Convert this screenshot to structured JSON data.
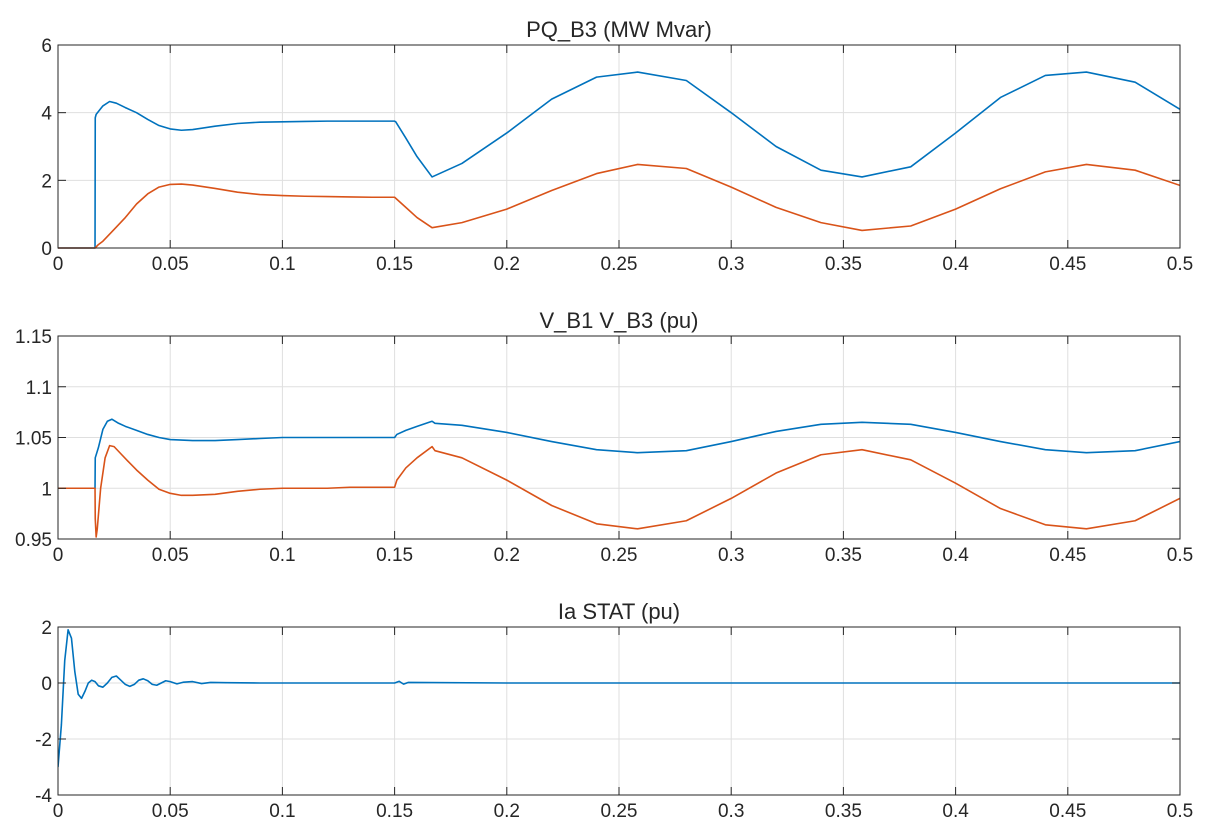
{
  "colors": {
    "series1": "#0072BD",
    "series2": "#D95319",
    "grid": "#DFDFDF",
    "axis": "#262626",
    "text": "#262626",
    "background": "#FFFFFF"
  },
  "chart_data": [
    {
      "type": "line",
      "title": "PQ_B3 (MW Mvar)",
      "xlabel": "",
      "ylabel": "",
      "xlim": [
        0,
        0.5
      ],
      "ylim": [
        0,
        6
      ],
      "xticks": [
        0,
        0.05,
        0.1,
        0.15,
        0.2,
        0.25,
        0.3,
        0.35,
        0.4,
        0.45,
        0.5
      ],
      "xtick_labels": [
        "0",
        "0.05",
        "0.1",
        "0.15",
        "0.2",
        "0.25",
        "0.3",
        "0.35",
        "0.4",
        "0.45",
        "0.5"
      ],
      "yticks": [
        0,
        2,
        4,
        6
      ],
      "ytick_labels": [
        "0",
        "2",
        "4",
        "6"
      ],
      "grid": true,
      "series": [
        {
          "color": "#0072BD",
          "x": [
            0,
            0.0165,
            0.0166,
            0.017,
            0.02,
            0.023,
            0.026,
            0.03,
            0.035,
            0.04,
            0.045,
            0.05,
            0.055,
            0.06,
            0.07,
            0.08,
            0.09,
            0.1,
            0.11,
            0.12,
            0.13,
            0.14,
            0.15,
            0.1505,
            0.155,
            0.16,
            0.1667,
            0.18,
            0.2,
            0.22,
            0.24,
            0.2583,
            0.28,
            0.3,
            0.32,
            0.34,
            0.3583,
            0.38,
            0.4,
            0.42,
            0.44,
            0.4583,
            0.48,
            0.5
          ],
          "y": [
            0,
            0,
            3.85,
            3.95,
            4.2,
            4.33,
            4.28,
            4.15,
            4.0,
            3.8,
            3.62,
            3.52,
            3.48,
            3.5,
            3.6,
            3.68,
            3.72,
            3.73,
            3.74,
            3.75,
            3.75,
            3.75,
            3.75,
            3.73,
            3.25,
            2.7,
            2.1,
            2.5,
            3.4,
            4.4,
            5.05,
            5.2,
            4.95,
            4.0,
            3.0,
            2.3,
            2.1,
            2.4,
            3.4,
            4.45,
            5.1,
            5.2,
            4.9,
            4.1
          ]
        },
        {
          "color": "#D95319",
          "x": [
            0,
            0.0165,
            0.018,
            0.02,
            0.025,
            0.03,
            0.035,
            0.04,
            0.045,
            0.05,
            0.055,
            0.06,
            0.07,
            0.08,
            0.09,
            0.1,
            0.11,
            0.12,
            0.13,
            0.14,
            0.15,
            0.155,
            0.16,
            0.1667,
            0.18,
            0.2,
            0.22,
            0.24,
            0.2583,
            0.28,
            0.3,
            0.32,
            0.34,
            0.3583,
            0.38,
            0.4,
            0.42,
            0.44,
            0.4583,
            0.48,
            0.5
          ],
          "y": [
            0,
            0,
            0.1,
            0.2,
            0.55,
            0.9,
            1.3,
            1.6,
            1.8,
            1.88,
            1.89,
            1.86,
            1.76,
            1.65,
            1.58,
            1.55,
            1.53,
            1.52,
            1.51,
            1.5,
            1.5,
            1.2,
            0.9,
            0.6,
            0.75,
            1.15,
            1.7,
            2.2,
            2.47,
            2.35,
            1.8,
            1.2,
            0.75,
            0.52,
            0.65,
            1.15,
            1.75,
            2.25,
            2.47,
            2.3,
            1.85
          ]
        }
      ]
    },
    {
      "type": "line",
      "title": "V_B1 V_B3 (pu)",
      "xlabel": "",
      "ylabel": "",
      "xlim": [
        0,
        0.5
      ],
      "ylim": [
        0.95,
        1.15
      ],
      "xticks": [
        0,
        0.05,
        0.1,
        0.15,
        0.2,
        0.25,
        0.3,
        0.35,
        0.4,
        0.45,
        0.5
      ],
      "xtick_labels": [
        "0",
        "0.05",
        "0.1",
        "0.15",
        "0.2",
        "0.25",
        "0.3",
        "0.35",
        "0.4",
        "0.45",
        "0.5"
      ],
      "yticks": [
        0.95,
        1,
        1.05,
        1.1,
        1.15
      ],
      "ytick_labels": [
        "0.95",
        "1",
        "1.05",
        "1.1",
        "1.15"
      ],
      "grid": true,
      "series": [
        {
          "color": "#0072BD",
          "x": [
            0,
            0.0165,
            0.0166,
            0.018,
            0.02,
            0.022,
            0.024,
            0.027,
            0.03,
            0.035,
            0.04,
            0.045,
            0.05,
            0.06,
            0.07,
            0.08,
            0.09,
            0.1,
            0.11,
            0.12,
            0.13,
            0.14,
            0.15,
            0.151,
            0.155,
            0.16,
            0.1667,
            0.168,
            0.18,
            0.2,
            0.22,
            0.24,
            0.2583,
            0.28,
            0.3,
            0.32,
            0.34,
            0.3583,
            0.38,
            0.4,
            0.42,
            0.44,
            0.4583,
            0.48,
            0.5
          ],
          "y": [
            1.0,
            1.0,
            1.03,
            1.04,
            1.058,
            1.066,
            1.068,
            1.064,
            1.061,
            1.057,
            1.053,
            1.05,
            1.048,
            1.047,
            1.047,
            1.048,
            1.049,
            1.05,
            1.05,
            1.05,
            1.05,
            1.05,
            1.05,
            1.053,
            1.057,
            1.061,
            1.066,
            1.064,
            1.062,
            1.055,
            1.046,
            1.038,
            1.035,
            1.037,
            1.046,
            1.056,
            1.063,
            1.065,
            1.063,
            1.055,
            1.046,
            1.038,
            1.035,
            1.037,
            1.046
          ]
        },
        {
          "color": "#D95319",
          "x": [
            0,
            0.0165,
            0.0166,
            0.017,
            0.0175,
            0.019,
            0.021,
            0.023,
            0.025,
            0.028,
            0.031,
            0.035,
            0.04,
            0.045,
            0.05,
            0.055,
            0.06,
            0.07,
            0.08,
            0.09,
            0.1,
            0.11,
            0.12,
            0.13,
            0.14,
            0.15,
            0.151,
            0.155,
            0.16,
            0.1667,
            0.168,
            0.18,
            0.2,
            0.22,
            0.24,
            0.2583,
            0.28,
            0.3,
            0.32,
            0.34,
            0.3583,
            0.38,
            0.4,
            0.42,
            0.44,
            0.4583,
            0.48,
            0.5
          ],
          "y": [
            1.0,
            1.0,
            0.97,
            0.952,
            0.96,
            1.0,
            1.03,
            1.042,
            1.041,
            1.034,
            1.027,
            1.018,
            1.008,
            0.999,
            0.995,
            0.993,
            0.993,
            0.994,
            0.997,
            0.999,
            1.0,
            1.0,
            1.0,
            1.001,
            1.001,
            1.001,
            1.008,
            1.02,
            1.03,
            1.041,
            1.037,
            1.03,
            1.008,
            0.983,
            0.965,
            0.96,
            0.968,
            0.99,
            1.015,
            1.033,
            1.038,
            1.028,
            1.005,
            0.98,
            0.964,
            0.96,
            0.968,
            0.99
          ]
        }
      ]
    },
    {
      "type": "line",
      "title": "Ia STAT (pu)",
      "xlabel": "",
      "ylabel": "",
      "xlim": [
        0,
        0.5
      ],
      "ylim": [
        -4,
        2
      ],
      "xticks": [
        0,
        0.05,
        0.1,
        0.15,
        0.2,
        0.25,
        0.3,
        0.35,
        0.4,
        0.45,
        0.5
      ],
      "xtick_labels": [
        "0",
        "0.05",
        "0.1",
        "0.15",
        "0.2",
        "0.25",
        "0.3",
        "0.35",
        "0.4",
        "0.45",
        "0.5"
      ],
      "yticks": [
        -4,
        -2,
        0,
        2
      ],
      "ytick_labels": [
        "-4",
        "-2",
        "0",
        "2"
      ],
      "grid": true,
      "series": [
        {
          "color": "#0072BD",
          "x": [
            0,
            0.0015,
            0.003,
            0.0045,
            0.006,
            0.0075,
            0.009,
            0.0105,
            0.012,
            0.0135,
            0.015,
            0.0165,
            0.018,
            0.02,
            0.022,
            0.024,
            0.026,
            0.028,
            0.03,
            0.032,
            0.034,
            0.036,
            0.038,
            0.04,
            0.042,
            0.044,
            0.046,
            0.048,
            0.05,
            0.053,
            0.056,
            0.06,
            0.064,
            0.068,
            0.075,
            0.09,
            0.1,
            0.15,
            0.152,
            0.154,
            0.156,
            0.2,
            0.3,
            0.4,
            0.5
          ],
          "y": [
            -3.0,
            -1.5,
            0.8,
            1.9,
            1.6,
            0.4,
            -0.4,
            -0.55,
            -0.3,
            0.0,
            0.1,
            0.05,
            -0.1,
            -0.15,
            0.0,
            0.2,
            0.25,
            0.1,
            -0.05,
            -0.12,
            -0.05,
            0.1,
            0.15,
            0.08,
            -0.05,
            -0.08,
            0.0,
            0.08,
            0.05,
            -0.03,
            0.03,
            0.05,
            -0.02,
            0.02,
            0.01,
            0.0,
            0.0,
            0.0,
            0.06,
            -0.04,
            0.02,
            0.0,
            0.0,
            0.0,
            0.0
          ]
        }
      ]
    }
  ]
}
